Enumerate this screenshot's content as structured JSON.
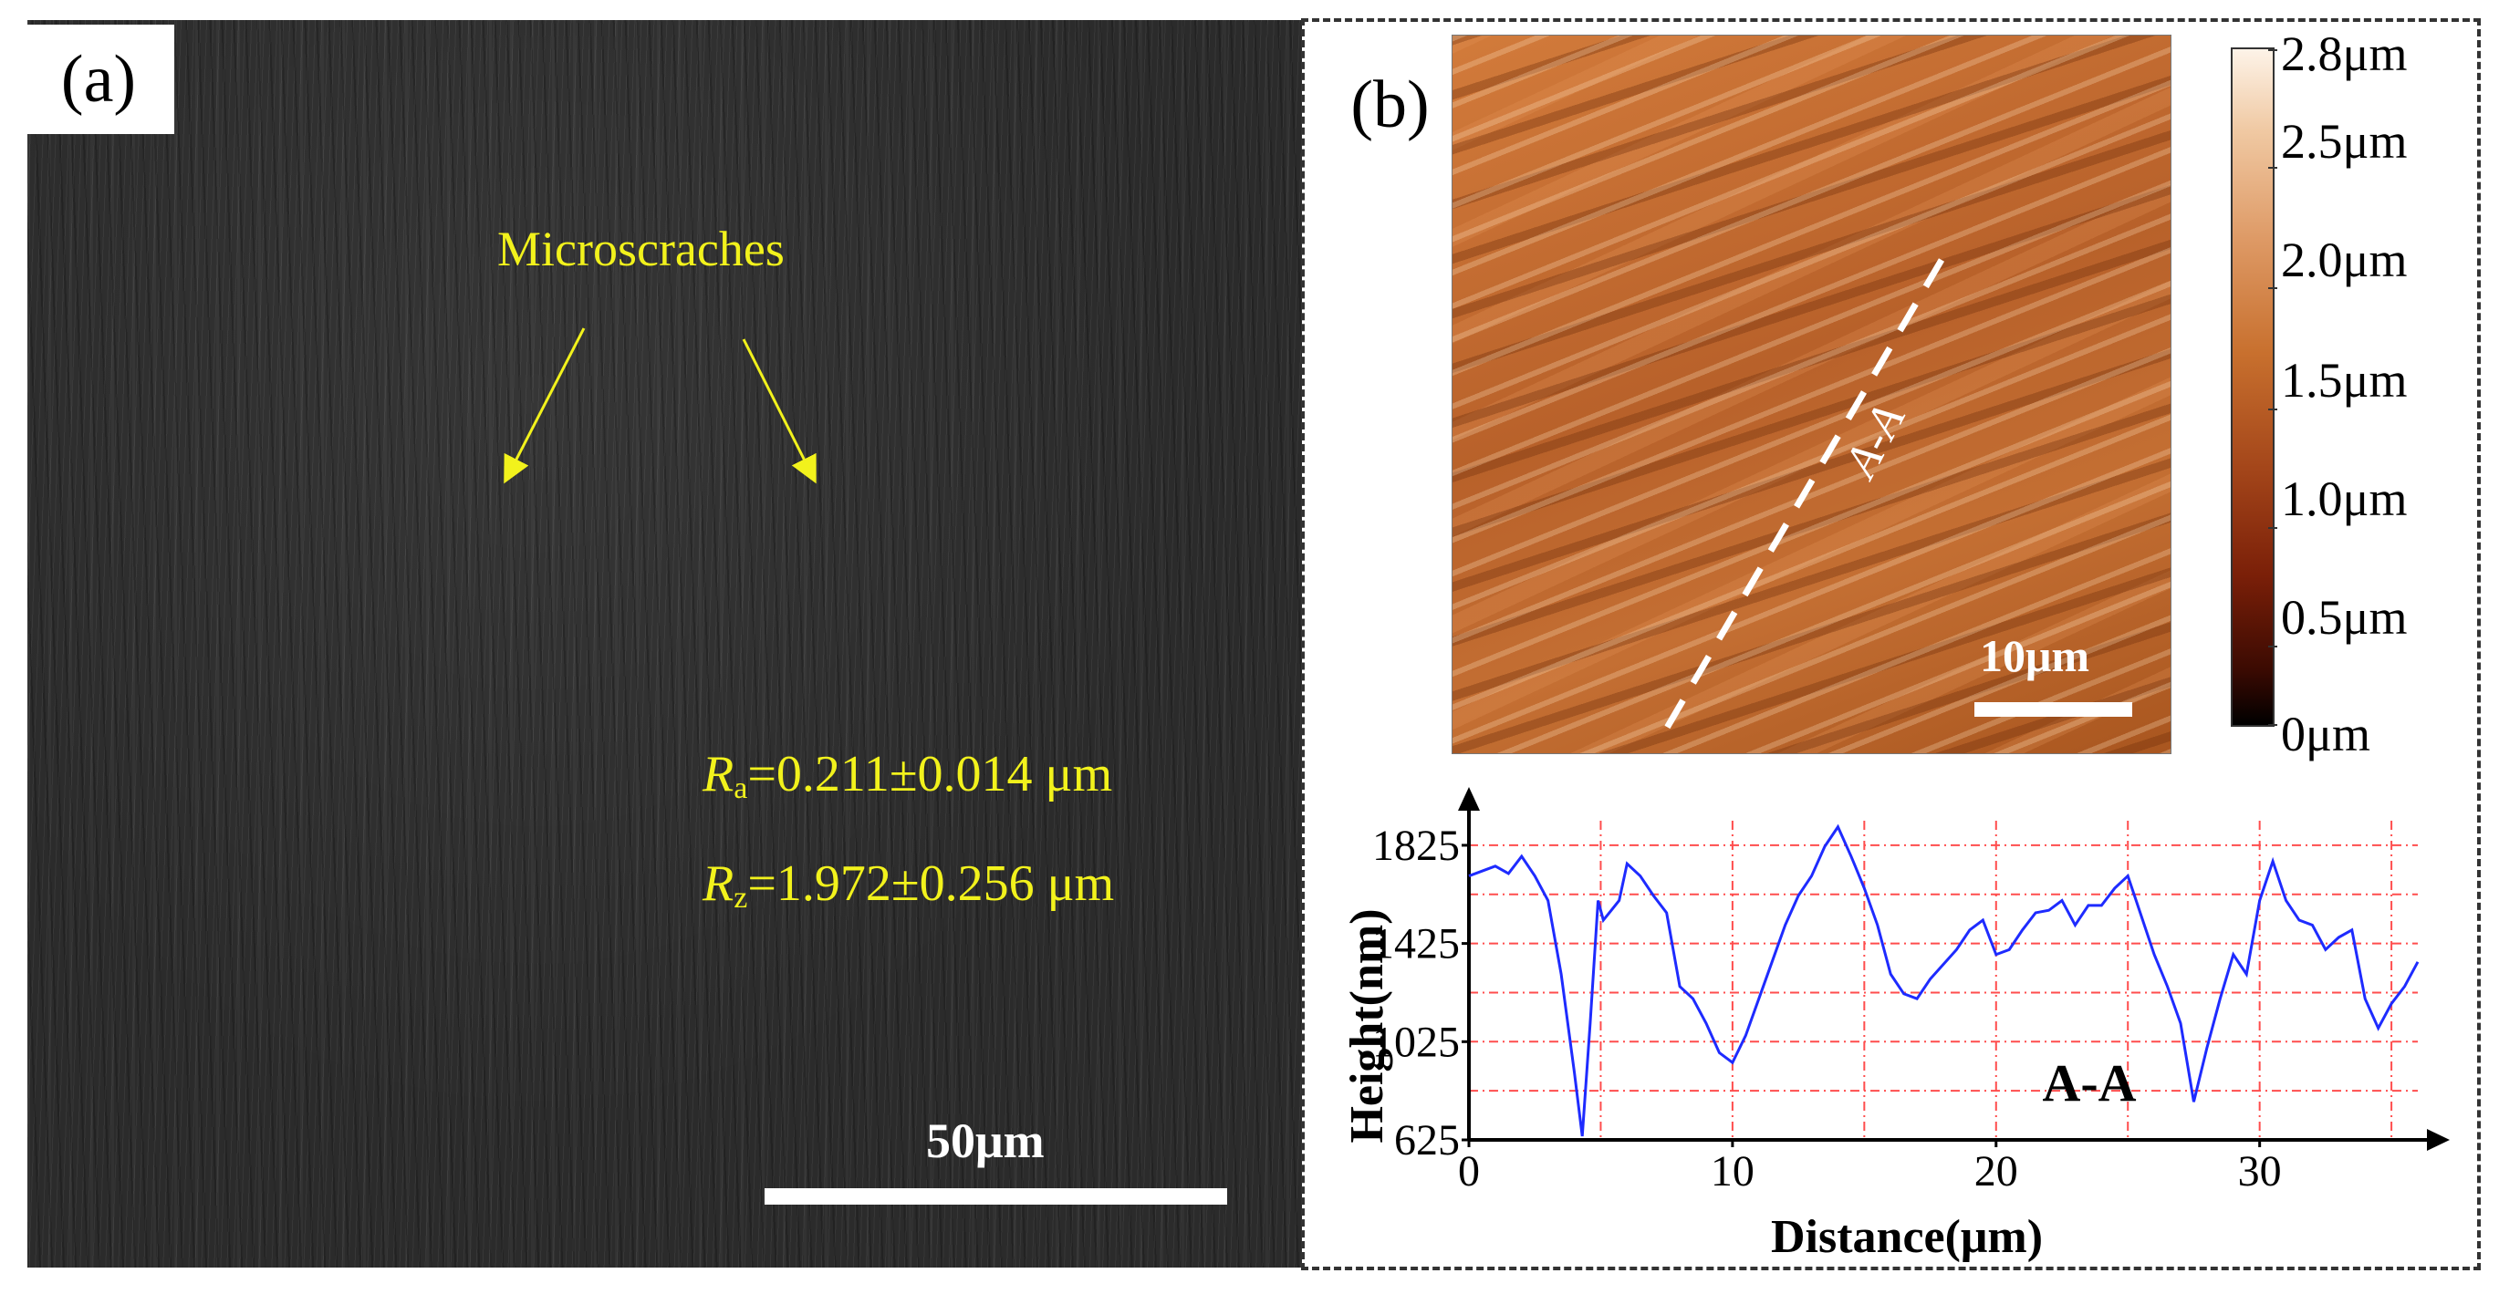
{
  "panel_a": {
    "label": "(a)",
    "annotation": "Microscraches",
    "ra": {
      "symbol": "R",
      "sub": "a",
      "value": "=0.211±0.014 μm"
    },
    "rz": {
      "symbol": "R",
      "sub": "z",
      "value": "=1.972±0.256 μm"
    },
    "scale_bar": "50μm"
  },
  "panel_b": {
    "label": "(b)",
    "line_label": "A-A",
    "scale_bar": "10μm",
    "colorbar_labels": [
      "2.8μm",
      "2.5μm",
      "2.0μm",
      "1.5μm",
      "1.0μm",
      "0.5μm",
      "0μm"
    ],
    "colors": {
      "accent": "#ffff00",
      "profile_line": "#1e2bff",
      "grid": "#ff4d4d"
    }
  },
  "chart_data": {
    "type": "line",
    "title": "A-A",
    "xlabel": "Distance(μm)",
    "ylabel": "Height(nm)",
    "xlim": [
      0,
      36
    ],
    "ylim": [
      625,
      1925
    ],
    "xticks": [
      0,
      10,
      20,
      30
    ],
    "yticks": [
      625,
      1025,
      1425,
      1825
    ],
    "grid": true,
    "series": [
      {
        "name": "A-A profile",
        "x": [
          0,
          0.5,
          1,
          1.5,
          2,
          2.5,
          3,
          3.5,
          4,
          4.3,
          4.6,
          4.9,
          5.1,
          5.4,
          5.7,
          6,
          6.5,
          7,
          7.5,
          8,
          8.5,
          9,
          9.5,
          10,
          10.5,
          11,
          11.5,
          12,
          12.5,
          13,
          13.5,
          14,
          14.5,
          15,
          15.5,
          16,
          16.5,
          17,
          17.5,
          18,
          18.5,
          19,
          19.5,
          20,
          20.5,
          21,
          21.5,
          22,
          22.5,
          23,
          23.5,
          24,
          24.5,
          25,
          25.5,
          26,
          26.5,
          27,
          27.5,
          28,
          28.5,
          29,
          29.5,
          30,
          30.5,
          31,
          31.5,
          32,
          32.5,
          33,
          33.5,
          34,
          34.5,
          35,
          35.5,
          36
        ],
        "values": [
          1700,
          1720,
          1740,
          1710,
          1780,
          1700,
          1600,
          1300,
          900,
          640,
          1100,
          1600,
          1520,
          1560,
          1600,
          1750,
          1700,
          1620,
          1550,
          1250,
          1200,
          1100,
          980,
          940,
          1050,
          1200,
          1350,
          1500,
          1620,
          1700,
          1820,
          1900,
          1780,
          1650,
          1500,
          1300,
          1220,
          1200,
          1280,
          1340,
          1400,
          1480,
          1520,
          1380,
          1400,
          1480,
          1550,
          1560,
          1600,
          1500,
          1580,
          1580,
          1650,
          1700,
          1540,
          1380,
          1250,
          1100,
          780,
          1000,
          1200,
          1380,
          1300,
          1600,
          1760,
          1600,
          1520,
          1500,
          1400,
          1450,
          1480,
          1200,
          1080,
          1180,
          1250,
          1350
        ]
      }
    ]
  }
}
